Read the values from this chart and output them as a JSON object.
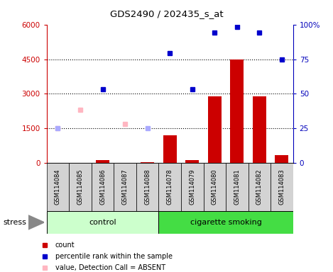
{
  "title": "GDS2490 / 202435_s_at",
  "samples": [
    "GSM114084",
    "GSM114085",
    "GSM114086",
    "GSM114087",
    "GSM114088",
    "GSM114078",
    "GSM114079",
    "GSM114080",
    "GSM114081",
    "GSM114082",
    "GSM114083"
  ],
  "counts": [
    0,
    0,
    120,
    10,
    30,
    1200,
    150,
    2900,
    4500,
    2900,
    350
  ],
  "percentile_ranks_present": [
    null,
    null,
    3200,
    null,
    null,
    4750,
    3200,
    5650,
    5900,
    5650,
    4500
  ],
  "absent_values": [
    1500,
    2300,
    null,
    1700,
    null,
    null,
    null,
    null,
    null,
    null,
    null
  ],
  "absent_ranks": [
    1500,
    null,
    null,
    null,
    1500,
    null,
    null,
    null,
    null,
    null,
    null
  ],
  "groups": [
    {
      "label": "control",
      "start": 0,
      "end": 5,
      "color": "#CCFFCC"
    },
    {
      "label": "cigarette smoking",
      "start": 5,
      "end": 11,
      "color": "#44DD44"
    }
  ],
  "ylim_left": [
    0,
    6000
  ],
  "ylim_right": [
    0,
    100
  ],
  "left_ticks": [
    0,
    1500,
    3000,
    4500,
    6000
  ],
  "right_ticks": [
    0,
    25,
    50,
    75,
    100
  ],
  "left_tick_labels": [
    "0",
    "1500",
    "3000",
    "4500",
    "6000"
  ],
  "right_tick_labels": [
    "0",
    "25",
    "50",
    "75",
    "100%"
  ],
  "bar_color": "#CC0000",
  "present_dot_color": "#0000CC",
  "absent_value_color": "#FFB6C1",
  "absent_rank_color": "#AAAAFF",
  "plot_bg_color": "#FFFFFF",
  "left_axis_color": "#CC0000",
  "right_axis_color": "#0000BB",
  "label_box_color": "#D3D3D3",
  "gridline_color": "#000000"
}
